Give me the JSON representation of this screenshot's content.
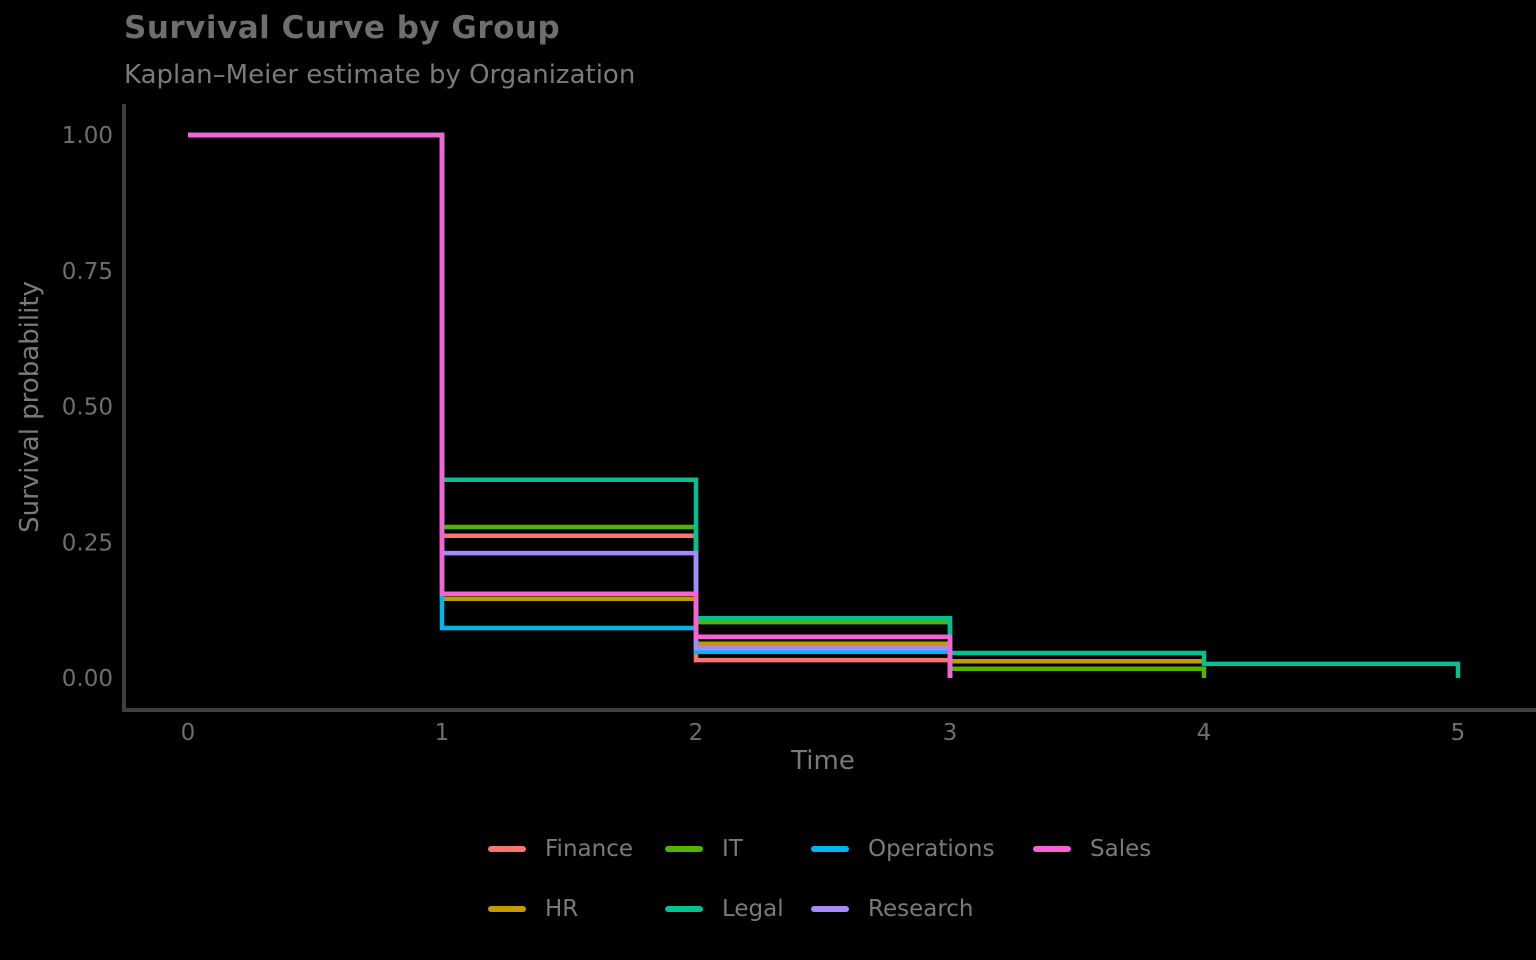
{
  "chart": {
    "title": "Survival Curve by Group",
    "subtitle": "Kaplan–Meier estimate by Organization",
    "xlabel": "Time",
    "ylabel": "Survival probability",
    "colors": {
      "background": "#000000",
      "axis_line": "#3e3e3e",
      "title_text": "#6e6e6e",
      "subtitle_text": "#7a7a7a",
      "axis_label_text": "#7a7a7a",
      "tick_label_text": "#6e6e6e",
      "legend_label_text": "#7a7a7a"
    }
  },
  "chart_data": {
    "type": "line",
    "subtype": "kaplan-meier-step",
    "title": "Survival Curve by Group",
    "subtitle": "Kaplan–Meier estimate by Organization",
    "xlabel": "Time",
    "ylabel": "Survival probability",
    "xlim": [
      0,
      5
    ],
    "ylim": [
      0,
      1
    ],
    "grid": false,
    "x_ticks": [
      {
        "label": "0",
        "value": 0
      },
      {
        "label": "1",
        "value": 1
      },
      {
        "label": "2",
        "value": 2
      },
      {
        "label": "3",
        "value": 3
      },
      {
        "label": "4",
        "value": 4
      },
      {
        "label": "5",
        "value": 5
      }
    ],
    "y_ticks": [
      {
        "label": "0.00",
        "value": 0.0
      },
      {
        "label": "0.25",
        "value": 0.25
      },
      {
        "label": "0.50",
        "value": 0.5
      },
      {
        "label": "0.75",
        "value": 0.75
      },
      {
        "label": "1.00",
        "value": 1.0
      }
    ],
    "series": [
      {
        "name": "Finance",
        "color": "#F8766D",
        "points": [
          [
            0,
            1
          ],
          [
            1,
            1
          ],
          [
            1,
            0.262
          ],
          [
            2,
            0.262
          ],
          [
            2,
            0.033
          ],
          [
            3,
            0.033
          ],
          [
            3,
            0
          ]
        ]
      },
      {
        "name": "HR",
        "color": "#C49A00",
        "points": [
          [
            0,
            1
          ],
          [
            1,
            1
          ],
          [
            1,
            0.146
          ],
          [
            2,
            0.146
          ],
          [
            2,
            0.063
          ],
          [
            3,
            0.063
          ],
          [
            3,
            0.031
          ],
          [
            4,
            0.031
          ]
        ]
      },
      {
        "name": "IT",
        "color": "#53B400",
        "points": [
          [
            0,
            1
          ],
          [
            1,
            1
          ],
          [
            1,
            0.278
          ],
          [
            2,
            0.278
          ],
          [
            2,
            0.103
          ],
          [
            3,
            0.103
          ],
          [
            3,
            0.017
          ],
          [
            4,
            0.017
          ],
          [
            4,
            0
          ]
        ]
      },
      {
        "name": "Legal",
        "color": "#00C094",
        "points": [
          [
            0,
            1
          ],
          [
            1,
            1
          ],
          [
            1,
            0.365
          ],
          [
            2,
            0.365
          ],
          [
            2,
            0.11
          ],
          [
            3,
            0.11
          ],
          [
            3,
            0.046
          ],
          [
            4,
            0.046
          ],
          [
            4,
            0.026
          ],
          [
            5,
            0.026
          ],
          [
            5,
            0
          ]
        ]
      },
      {
        "name": "Operations",
        "color": "#00B6EB",
        "points": [
          [
            0,
            1
          ],
          [
            1,
            1
          ],
          [
            1,
            0.092
          ],
          [
            2,
            0.092
          ],
          [
            2,
            0.048
          ],
          [
            3,
            0.048
          ],
          [
            3,
            0
          ]
        ]
      },
      {
        "name": "Research",
        "color": "#A58AFF",
        "points": [
          [
            0,
            1
          ],
          [
            1,
            1
          ],
          [
            1,
            0.23
          ],
          [
            2,
            0.23
          ],
          [
            2,
            0.055
          ],
          [
            3,
            0.055
          ],
          [
            3,
            0
          ]
        ]
      },
      {
        "name": "Sales",
        "color": "#FB61D7",
        "points": [
          [
            0,
            1
          ],
          [
            1,
            1
          ],
          [
            1,
            0.155
          ],
          [
            2,
            0.155
          ],
          [
            2,
            0.076
          ],
          [
            3,
            0.076
          ],
          [
            3,
            0
          ]
        ]
      }
    ],
    "legend": {
      "position": "bottom",
      "rows": [
        [
          "Finance",
          "IT",
          "Operations",
          "Sales"
        ],
        [
          "HR",
          "Legal",
          "Research"
        ]
      ]
    }
  }
}
